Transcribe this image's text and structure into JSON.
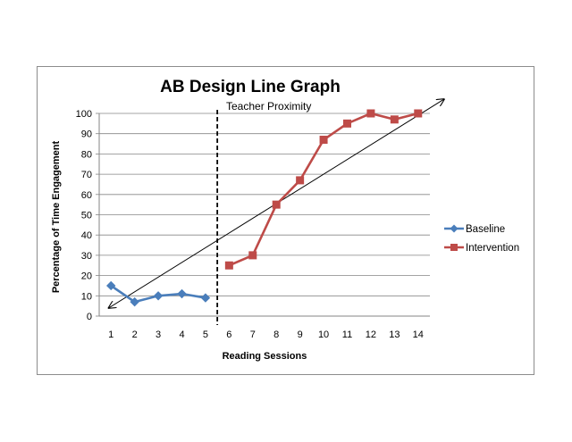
{
  "chart_data": {
    "type": "line",
    "title": "AB Design Line Graph",
    "xlabel": "Reading Sessions",
    "ylabel": "Percentage of Time Engagement",
    "annotation": "Teacher Proximity",
    "x_ticks": [
      1,
      2,
      3,
      4,
      5,
      6,
      7,
      8,
      9,
      10,
      11,
      12,
      13,
      14
    ],
    "y_ticks": [
      0,
      10,
      20,
      30,
      40,
      50,
      60,
      70,
      80,
      90,
      100
    ],
    "xlim": [
      0.5,
      14.5
    ],
    "ylim": [
      0,
      100
    ],
    "grid": true,
    "legend_position": "right",
    "phase_change_after": 5,
    "series": [
      {
        "name": "Baseline",
        "color": "#4a7ebb",
        "marker": "diamond",
        "x": [
          1,
          2,
          3,
          4,
          5
        ],
        "values": [
          15,
          7,
          10,
          11,
          9
        ]
      },
      {
        "name": "Intervention",
        "color": "#be4b48",
        "marker": "square",
        "x": [
          6,
          7,
          8,
          9,
          10,
          11,
          12,
          13,
          14
        ],
        "values": [
          25,
          30,
          55,
          67,
          87,
          95,
          100,
          97,
          100
        ]
      }
    ],
    "trend_arrow": {
      "start": [
        0.9,
        4
      ],
      "end": [
        15.1,
        107
      ]
    }
  }
}
